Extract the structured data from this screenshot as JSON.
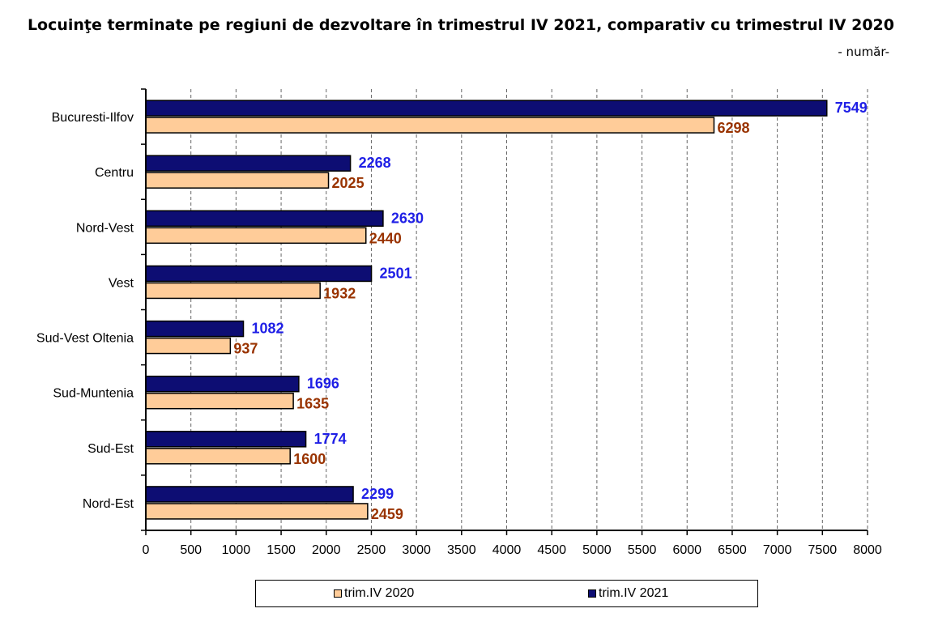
{
  "chart_data": {
    "type": "bar",
    "orientation": "horizontal",
    "title": "Locuinţe terminate pe regiuni de dezvoltare în trimestrul IV 2021, comparativ cu trimestrul IV 2020",
    "subtitle": "- număr-",
    "categories": [
      "Bucuresti-Ilfov",
      "Centru",
      "Nord-Vest",
      "Vest",
      "Sud-Vest Oltenia",
      "Sud-Muntenia",
      "Sud-Est",
      "Nord-Est"
    ],
    "series": [
      {
        "name": "trim.IV 2021",
        "color": "#0d0d73",
        "label_color": "#1f1fe6",
        "values": [
          7549,
          2268,
          2630,
          2501,
          1082,
          1696,
          1774,
          2299
        ]
      },
      {
        "name": "trim.IV 2020",
        "color": "#ffcc99",
        "label_color": "#993300",
        "values": [
          6298,
          2025,
          2440,
          1932,
          937,
          1635,
          1600,
          2459
        ]
      }
    ],
    "xlim": [
      0,
      8000
    ],
    "xticks": [
      0,
      500,
      1000,
      1500,
      2000,
      2500,
      3000,
      3500,
      4000,
      4500,
      5000,
      5500,
      6000,
      6500,
      7000,
      7500,
      8000
    ],
    "grid": "vertical dashed",
    "legend_position": "bottom"
  },
  "legend": {
    "items": [
      {
        "label": "trim.IV 2020",
        "color": "#ffcc99"
      },
      {
        "label": "trim.IV 2021",
        "color": "#0d0d73"
      }
    ]
  }
}
